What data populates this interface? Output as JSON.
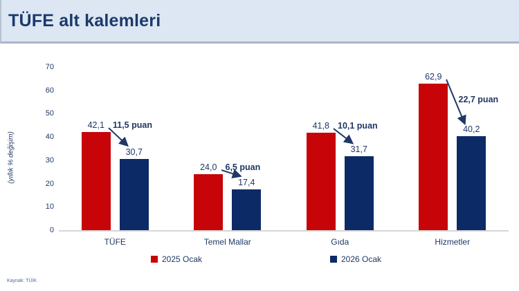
{
  "header": {
    "title": "TÜFE alt kalemleri"
  },
  "chart_data": {
    "type": "bar",
    "title": "TÜFE alt kalemleri",
    "ylabel": "(yıllık % değişim)",
    "ylim": [
      0,
      70
    ],
    "ytick_step": 10,
    "grid": false,
    "legend_position": "bottom",
    "categories": [
      "TÜFE",
      "Temel Mallar",
      "Gıda",
      "Hizmetler"
    ],
    "series": [
      {
        "name": "2025 Ocak",
        "color": "#c70408",
        "values": [
          42.1,
          24.0,
          41.8,
          62.9
        ],
        "value_labels": [
          "42,1",
          "24,0",
          "41,8",
          "62,9"
        ]
      },
      {
        "name": "2026 Ocak",
        "color": "#0c2b66",
        "values": [
          30.7,
          17.4,
          31.7,
          40.2
        ],
        "value_labels": [
          "30,7",
          "17,4",
          "31,7",
          "40,2"
        ]
      }
    ],
    "annotations": [
      "11,5 puan",
      "6,5 puan",
      "10,1 puan",
      "22,7 puan"
    ],
    "text_color": "#1f3864",
    "source": "Kaynak: TÜİK"
  }
}
